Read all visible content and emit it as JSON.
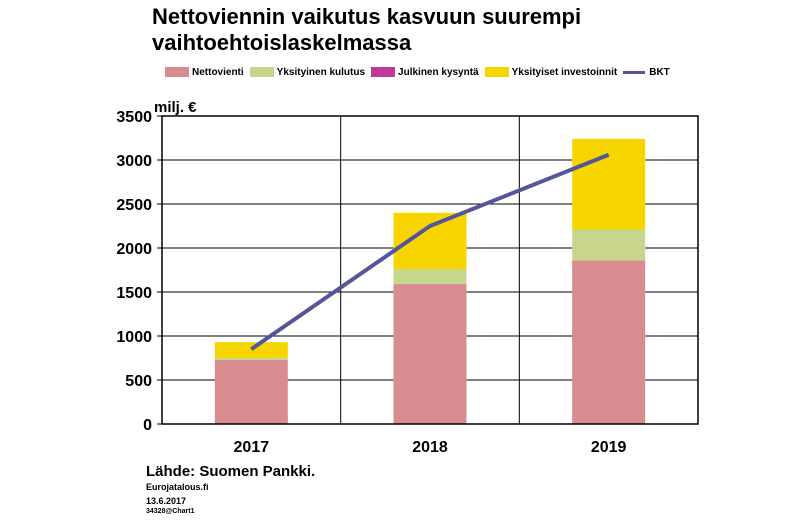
{
  "header": {
    "title_line1": "Nettoviennin vaikutus kasvuun suurempi",
    "title_line2": "vaihtoehtoislaskelmassa"
  },
  "legend": [
    {
      "label": "Nettovienti",
      "color": "#d98c8f",
      "kind": "bar"
    },
    {
      "label": "Yksityinen kulutus",
      "color": "#c8d58c",
      "kind": "bar"
    },
    {
      "label": "Julkinen kysyntä",
      "color": "#c0399a",
      "kind": "bar"
    },
    {
      "label": "Yksityiset investoinnit",
      "color": "#f7d600",
      "kind": "bar"
    },
    {
      "label": "BKT",
      "color": "#55559a",
      "kind": "line"
    }
  ],
  "footer": {
    "source": "Lähde: Suomen Pankki.",
    "site": "Eurojatalous.fi",
    "date": "13.6.2017",
    "code": "34328@Chart1"
  },
  "chart_data": {
    "type": "bar",
    "stacked": true,
    "ylabel": "milj. €",
    "categories": [
      "2017",
      "2018",
      "2019"
    ],
    "ylim": [
      0,
      3500
    ],
    "yticks": [
      0,
      500,
      1000,
      1500,
      2000,
      2500,
      3000,
      3500
    ],
    "grid": true,
    "series": [
      {
        "name": "Nettovienti",
        "values": [
          730,
          1590,
          1860
        ],
        "color": "#d98c8f"
      },
      {
        "name": "Yksityinen kulutus",
        "values": [
          20,
          170,
          350
        ],
        "color": "#c8d58c"
      },
      {
        "name": "Julkinen kysyntä",
        "values": [
          0,
          0,
          0
        ],
        "color": "#c0399a"
      },
      {
        "name": "Yksityiset investoinnit",
        "values": [
          180,
          640,
          1030
        ],
        "color": "#f7d600"
      }
    ],
    "line": {
      "name": "BKT",
      "values": [
        850,
        2250,
        3060
      ],
      "color": "#55559a"
    }
  }
}
